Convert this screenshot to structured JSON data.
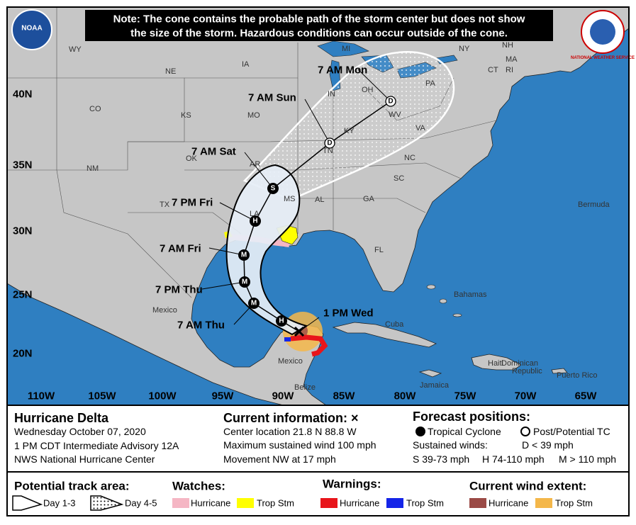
{
  "note": {
    "line1": "Note: The cone contains the probable path of the storm center but does not show",
    "line2": "the size of the storm. Hazardous conditions can occur outside of the cone."
  },
  "logos": {
    "left": "NOAA",
    "right": "NATIONAL WEATHER SERVICE"
  },
  "map": {
    "lat_labels": [
      "40N",
      "35N",
      "30N",
      "25N",
      "20N"
    ],
    "lon_labels": [
      "110W",
      "105W",
      "100W",
      "95W",
      "90W",
      "85W",
      "80W",
      "75W",
      "70W",
      "65W"
    ],
    "places": [
      "WY",
      "NE",
      "IA",
      "MI",
      "NY",
      "NH",
      "MA",
      "CT",
      "RI",
      "PA",
      "OH",
      "IN",
      "CO",
      "KS",
      "MO",
      "WV",
      "VA",
      "KY",
      "TN",
      "NC",
      "NM",
      "OK",
      "AR",
      "SC",
      "TX",
      "MS",
      "AL",
      "GA",
      "LA",
      "FL",
      "Bermuda",
      "Bahamas",
      "Mexico",
      "Cuba",
      "Mexico",
      "Belize",
      "Haiti",
      "Dominican",
      "Republic",
      "Puerto Rico",
      "Jamaica"
    ],
    "forecast": [
      {
        "label": "7 AM Mon",
        "marker": "D"
      },
      {
        "label": "7 AM Sun",
        "marker": "D"
      },
      {
        "label": "7 AM Sat",
        "marker": "S"
      },
      {
        "label": "7 PM Fri",
        "marker": "H"
      },
      {
        "label": "7 AM Fri",
        "marker": "M"
      },
      {
        "label": "7 PM Thu",
        "marker": "M"
      },
      {
        "label": "7 AM Thu",
        "marker": "M"
      },
      {
        "label": "1 PM Wed",
        "marker": "H"
      }
    ]
  },
  "info": {
    "storm": {
      "name": "Hurricane Delta",
      "date": "Wednesday October 07, 2020",
      "advisory": "1 PM CDT Intermediate Advisory 12A",
      "center": "NWS National Hurricane Center"
    },
    "current": {
      "title": "Current information: ×",
      "location": "Center location 21.8 N 88.8 W",
      "wind": "Maximum sustained wind 100 mph",
      "movement": "Movement NW at 17 mph"
    },
    "positions": {
      "title": "Forecast positions:",
      "tc": "Tropical Cyclone",
      "ptc": "Post/Potential TC",
      "winds": "Sustained winds:",
      "d": "D < 39 mph",
      "s": "S 39-73 mph",
      "h": "H 74-110 mph",
      "m": "M > 110 mph"
    }
  },
  "legend": {
    "track": {
      "title": "Potential track area:",
      "day13": "Day 1-3",
      "day45": "Day 4-5"
    },
    "watches": {
      "title": "Watches:",
      "hurricane": "Hurricane",
      "tropical_storm": "Trop Stm"
    },
    "warnings": {
      "title": "Warnings:",
      "hurricane": "Hurricane",
      "tropical_storm": "Trop Stm"
    },
    "wind": {
      "title": "Current wind extent:",
      "hurricane": "Hurricane",
      "tropical_storm": "Trop Stm"
    }
  }
}
